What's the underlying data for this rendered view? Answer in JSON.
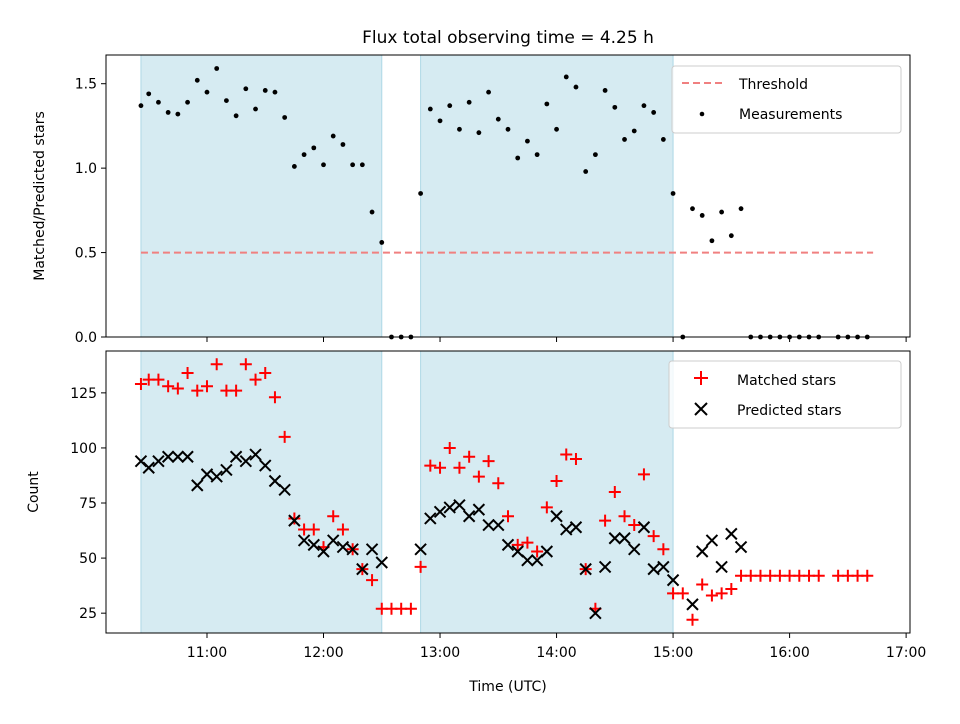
{
  "chart_data": [
    {
      "type": "scatter",
      "title": "Flux total observing time = 4.25 h",
      "xlabel": "",
      "ylabel": "Matched/Predicted stars",
      "xlim": [
        "10:08",
        "17:02"
      ],
      "ylim": [
        0,
        1.67
      ],
      "yticks": [
        0.0,
        0.5,
        1.0,
        1.5
      ],
      "ytick_labels": [
        "0.0",
        "0.5",
        "1.0",
        "1.5"
      ],
      "shaded_intervals": [
        [
          "10:26",
          "12:30"
        ],
        [
          "12:50",
          "15:00"
        ]
      ],
      "shade_color": "#add8e6",
      "legend_position": "top-right",
      "series": [
        {
          "name": "Threshold",
          "kind": "line",
          "style": "dashed",
          "color": "#f08080",
          "x": [
            "10:26",
            "16:43"
          ],
          "y": [
            0.5,
            0.5
          ]
        },
        {
          "name": "Measurements",
          "kind": "scatter",
          "marker": "dot",
          "color": "#000000",
          "x": [
            "10:26",
            "10:30",
            "10:35",
            "10:40",
            "10:45",
            "10:50",
            "10:55",
            "11:00",
            "11:05",
            "11:10",
            "11:15",
            "11:20",
            "11:25",
            "11:30",
            "11:35",
            "11:40",
            "11:45",
            "11:50",
            "11:55",
            "12:00",
            "12:05",
            "12:10",
            "12:15",
            "12:20",
            "12:25",
            "12:30",
            "12:35",
            "12:40",
            "12:45",
            "12:50",
            "12:55",
            "13:00",
            "13:05",
            "13:10",
            "13:15",
            "13:20",
            "13:25",
            "13:30",
            "13:35",
            "13:40",
            "13:45",
            "13:50",
            "13:55",
            "14:00",
            "14:05",
            "14:10",
            "14:15",
            "14:20",
            "14:25",
            "14:30",
            "14:35",
            "14:40",
            "14:45",
            "14:50",
            "14:55",
            "15:00",
            "15:05",
            "15:10",
            "15:15",
            "15:20",
            "15:25",
            "15:30",
            "15:35",
            "15:40",
            "15:45",
            "15:50",
            "15:55",
            "16:00",
            "16:05",
            "16:10",
            "16:15",
            "16:25",
            "16:30",
            "16:35",
            "16:40"
          ],
          "y": [
            1.37,
            1.44,
            1.39,
            1.33,
            1.32,
            1.39,
            1.52,
            1.45,
            1.59,
            1.4,
            1.31,
            1.47,
            1.35,
            1.46,
            1.45,
            1.3,
            1.01,
            1.08,
            1.12,
            1.02,
            1.19,
            1.14,
            1.02,
            1.02,
            0.74,
            0.56,
            0.0,
            0.0,
            0.0,
            0.85,
            1.35,
            1.28,
            1.37,
            1.23,
            1.39,
            1.21,
            1.45,
            1.29,
            1.23,
            1.06,
            1.16,
            1.08,
            1.38,
            1.23,
            1.54,
            1.48,
            0.98,
            1.08,
            1.46,
            1.36,
            1.17,
            1.22,
            1.37,
            1.33,
            1.17,
            0.85,
            0.0,
            0.76,
            0.72,
            0.57,
            0.74,
            0.6,
            0.76,
            0.0,
            0.0,
            0.0,
            0.0,
            0.0,
            0.0,
            0.0,
            0.0,
            0.0,
            0.0,
            0.0,
            0.0
          ]
        }
      ]
    },
    {
      "type": "scatter",
      "title": "",
      "xlabel": "Time (UTC)",
      "ylabel": "Count",
      "xlim": [
        "10:08",
        "17:02"
      ],
      "ylim": [
        16,
        144
      ],
      "xticks": [
        "11:00",
        "12:00",
        "13:00",
        "14:00",
        "15:00",
        "16:00",
        "17:00"
      ],
      "yticks": [
        25,
        50,
        75,
        100,
        125
      ],
      "ytick_labels": [
        "25",
        "50",
        "75",
        "100",
        "125"
      ],
      "shaded_intervals": [
        [
          "10:26",
          "12:30"
        ],
        [
          "12:50",
          "15:00"
        ]
      ],
      "shade_color": "#add8e6",
      "legend_position": "top-right",
      "series": [
        {
          "name": "Matched stars",
          "kind": "scatter",
          "marker": "plus",
          "color": "#ff0000",
          "x": [
            "10:26",
            "10:30",
            "10:35",
            "10:40",
            "10:45",
            "10:50",
            "10:55",
            "11:00",
            "11:05",
            "11:10",
            "11:15",
            "11:20",
            "11:25",
            "11:30",
            "11:35",
            "11:40",
            "11:45",
            "11:50",
            "11:55",
            "12:00",
            "12:05",
            "12:10",
            "12:15",
            "12:20",
            "12:25",
            "12:30",
            "12:35",
            "12:40",
            "12:45",
            "12:50",
            "12:55",
            "13:00",
            "13:05",
            "13:10",
            "13:15",
            "13:20",
            "13:25",
            "13:30",
            "13:35",
            "13:40",
            "13:45",
            "13:50",
            "13:55",
            "14:00",
            "14:05",
            "14:10",
            "14:15",
            "14:20",
            "14:25",
            "14:30",
            "14:35",
            "14:40",
            "14:45",
            "14:50",
            "14:55",
            "15:00",
            "15:05",
            "15:10",
            "15:15",
            "15:20",
            "15:25",
            "15:30",
            "15:35",
            "15:40",
            "15:45",
            "15:50",
            "15:55",
            "16:00",
            "16:05",
            "16:10",
            "16:15",
            "16:25",
            "16:30",
            "16:35",
            "16:40"
          ],
          "y": [
            129,
            131,
            131,
            128,
            127,
            134,
            126,
            128,
            138,
            126,
            126,
            138,
            131,
            134,
            123,
            105,
            68,
            63,
            63,
            55,
            69,
            63,
            54,
            45,
            40,
            27,
            27,
            27,
            27,
            46,
            92,
            91,
            100,
            91,
            96,
            87,
            94,
            84,
            69,
            56,
            57,
            53,
            73,
            85,
            97,
            95,
            45,
            27,
            67,
            80,
            69,
            65,
            88,
            60,
            54,
            34,
            34,
            22,
            38,
            33,
            34,
            36,
            42,
            42,
            42,
            42,
            42,
            42,
            42,
            42,
            42,
            42,
            42,
            42,
            42
          ]
        },
        {
          "name": "Predicted stars",
          "kind": "scatter",
          "marker": "x",
          "color": "#000000",
          "x": [
            "10:26",
            "10:30",
            "10:35",
            "10:40",
            "10:45",
            "10:50",
            "10:55",
            "11:00",
            "11:05",
            "11:10",
            "11:15",
            "11:20",
            "11:25",
            "11:30",
            "11:35",
            "11:40",
            "11:45",
            "11:50",
            "11:55",
            "12:00",
            "12:05",
            "12:10",
            "12:15",
            "12:20",
            "12:25",
            "12:30",
            "12:50",
            "12:55",
            "13:00",
            "13:05",
            "13:10",
            "13:15",
            "13:20",
            "13:25",
            "13:30",
            "13:35",
            "13:40",
            "13:45",
            "13:50",
            "13:55",
            "14:00",
            "14:05",
            "14:10",
            "14:15",
            "14:20",
            "14:25",
            "14:30",
            "14:35",
            "14:40",
            "14:45",
            "14:50",
            "14:55",
            "15:00",
            "15:10",
            "15:15",
            "15:20",
            "15:25",
            "15:30",
            "15:35"
          ],
          "y": [
            94,
            91,
            94,
            96,
            96,
            96,
            83,
            88,
            87,
            90,
            96,
            94,
            97,
            92,
            85,
            81,
            67,
            58,
            56,
            53,
            58,
            55,
            54,
            45,
            54,
            48,
            54,
            68,
            71,
            73,
            74,
            69,
            72,
            65,
            65,
            56,
            53,
            49,
            49,
            53,
            69,
            63,
            64,
            45,
            25,
            46,
            59,
            59,
            54,
            64,
            45,
            46,
            40,
            29,
            53,
            58,
            46,
            61,
            55
          ]
        }
      ]
    }
  ]
}
